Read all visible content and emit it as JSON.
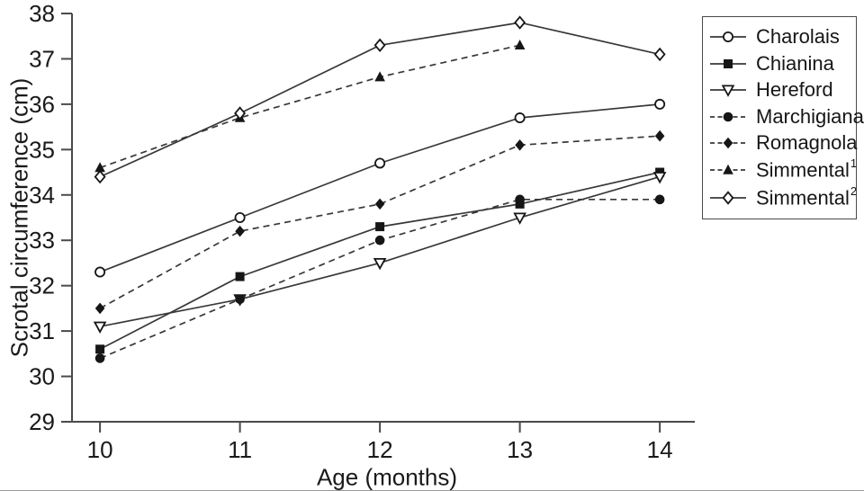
{
  "chart_data": {
    "type": "line",
    "title": "",
    "xlabel": "Age (months)",
    "ylabel": "Scrotal circumference (cm)",
    "x": [
      10,
      11,
      12,
      13,
      14
    ],
    "xticks": [
      10,
      11,
      12,
      13,
      14
    ],
    "yticks": [
      29,
      30,
      31,
      32,
      33,
      34,
      35,
      36,
      37,
      38
    ],
    "xlim": [
      9.8,
      14.25
    ],
    "ylim": [
      29,
      38
    ],
    "grid": false,
    "legend_position": "outside-right",
    "series": [
      {
        "name": "Charolais",
        "sup": "",
        "line": "solid",
        "marker": "circle-open",
        "values": [
          32.3,
          33.5,
          34.7,
          35.7,
          36.0
        ]
      },
      {
        "name": "Chianina",
        "sup": "",
        "line": "solid",
        "marker": "square-filled",
        "values": [
          30.6,
          32.2,
          33.3,
          33.8,
          34.5
        ]
      },
      {
        "name": "Hereford",
        "sup": "",
        "line": "solid",
        "marker": "triangle-down-open",
        "values": [
          31.1,
          31.7,
          32.5,
          33.5,
          34.4
        ]
      },
      {
        "name": "Marchigiana",
        "sup": "",
        "line": "dashed",
        "marker": "circle-filled",
        "values": [
          30.4,
          31.7,
          33.0,
          33.9,
          33.9
        ]
      },
      {
        "name": "Romagnola",
        "sup": "",
        "line": "dashed",
        "marker": "diamond-filled",
        "values": [
          31.5,
          33.2,
          33.8,
          35.1,
          35.3
        ]
      },
      {
        "name": "Simmental",
        "sup": "1",
        "line": "dashed",
        "marker": "triangle-up-filled",
        "values": [
          34.6,
          35.7,
          36.6,
          37.3,
          null
        ]
      },
      {
        "name": "Simmental",
        "sup": "2",
        "line": "solid",
        "marker": "diamond-open",
        "values": [
          34.4,
          35.8,
          37.3,
          37.8,
          37.1
        ]
      }
    ],
    "colors": {
      "line": "#383838",
      "marker": "#161616",
      "text": "#1a1a1a",
      "axis": "#4a4a4a",
      "background": "#ffffff"
    }
  }
}
